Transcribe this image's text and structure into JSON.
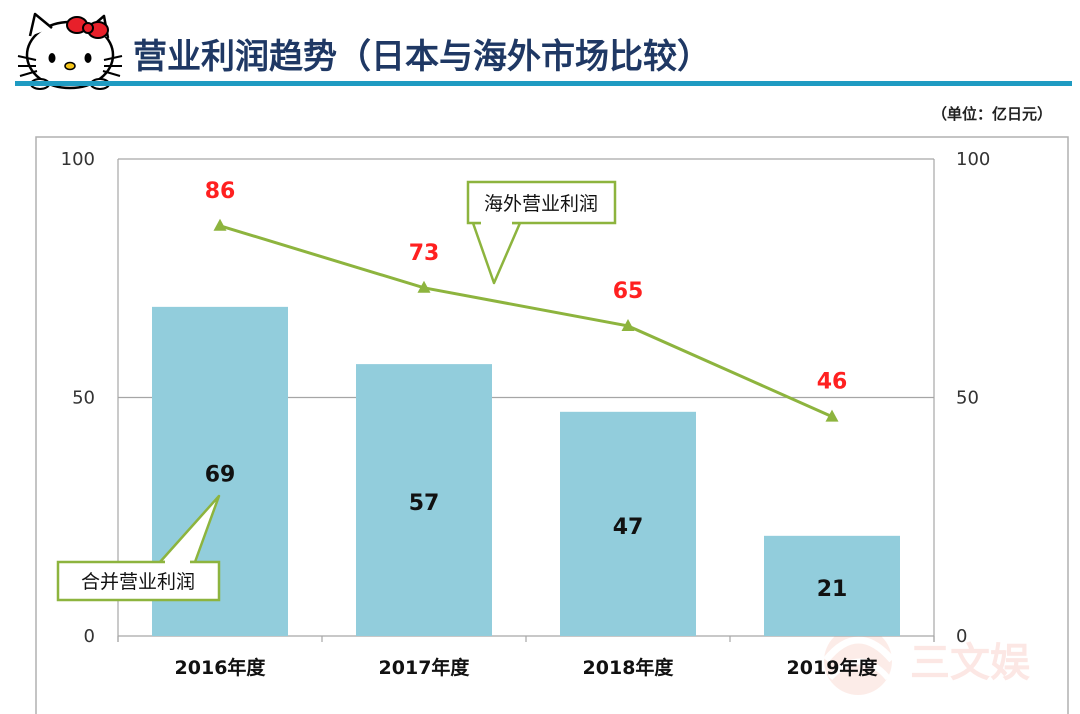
{
  "header": {
    "title": "营业利润趋势（日本与海外市场比较）",
    "unit": "（单位：亿日元）"
  },
  "watermark": {
    "text": "三文娱"
  },
  "chart_data": {
    "type": "bar",
    "categories": [
      "2016年度",
      "2017年度",
      "2018年度",
      "2019年度"
    ],
    "series": [
      {
        "name": "合并营业利润",
        "kind": "bar",
        "axis": "left",
        "values": [
          69,
          57,
          47,
          21
        ],
        "color": "#92CDDC"
      },
      {
        "name": "海外营业利润",
        "kind": "line",
        "axis": "right",
        "values": [
          86,
          73,
          65,
          46
        ],
        "color": "#8DB43E"
      }
    ],
    "ylim": [
      0,
      100
    ],
    "y_ticks": [
      0,
      50,
      100
    ],
    "y2_ticks": [
      0,
      50,
      100
    ],
    "annotations": [
      {
        "text": "海外营业利润",
        "target": "海外营业利润"
      },
      {
        "text": "合并营业利润",
        "target": "合并营业利润"
      }
    ],
    "line_label_color": "#FF2020",
    "accent_rule_color": "#1F9BC2"
  }
}
